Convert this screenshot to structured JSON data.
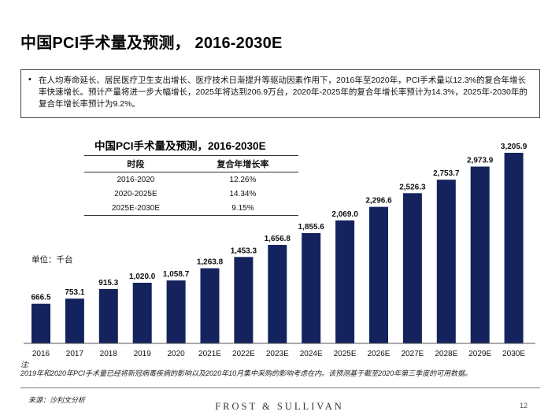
{
  "page": {
    "title": "中国PCI手术量及预测， 2016-2030E",
    "summary": "在人均寿命延长、居民医疗卫生支出增长、医疗技术日渐提升等驱动因素作用下，2016年至2020年，PCI手术量以12.3%的复合年增长率快速增长。预计产量将进一步大幅增长，2025年将达到206.9万台，2020年-2025年的复合年增长率预计为14.3%，2025年-2030年的复合年增长率预计为9.2%。",
    "unit_label": "单位：千台",
    "note_label": "注:",
    "note_text": "2019年和2020年PCI手术量已经将新冠病毒疾病的影响以及2020年10月集中采购的影响考虑在内。该预测基于截至2020年第三季度的可用数据。",
    "source": "来源：沙利文分析",
    "brand": "FROST & SULLIVAN",
    "page_number": "12"
  },
  "inset": {
    "title": "中国PCI手术量及预测，2016-2030E",
    "headers": [
      "时段",
      "复合年增长率"
    ],
    "rows": [
      [
        "2016-2020",
        "12.26%"
      ],
      [
        "2020-2025E",
        "14.34%"
      ],
      [
        "2025E-2030E",
        "9.15%"
      ]
    ]
  },
  "chart_data": {
    "type": "bar",
    "title": "",
    "xlabel": "",
    "ylabel": "单位：千台",
    "categories": [
      "2016",
      "2017",
      "2018",
      "2019",
      "2020",
      "2021E",
      "2022E",
      "2023E",
      "2024E",
      "2025E",
      "2026E",
      "2027E",
      "2028E",
      "2029E",
      "2030E"
    ],
    "values": [
      666.5,
      753.1,
      915.3,
      1020.0,
      1058.7,
      1263.8,
      1453.3,
      1656.8,
      1855.6,
      2069.0,
      2296.6,
      2526.3,
      2753.7,
      2973.9,
      3205.9
    ],
    "value_labels": [
      "666.5",
      "753.1",
      "915.3",
      "1,020.0",
      "1,058.7",
      "1,263.8",
      "1,453.3",
      "1,656.8",
      "1,855.6",
      "2,069.0",
      "2,296.6",
      "2,526.3",
      "2,753.7",
      "2,973.9",
      "3,205.9"
    ],
    "ylim": [
      0,
      3205.9
    ],
    "bar_color": "#14235e",
    "grid": false
  }
}
